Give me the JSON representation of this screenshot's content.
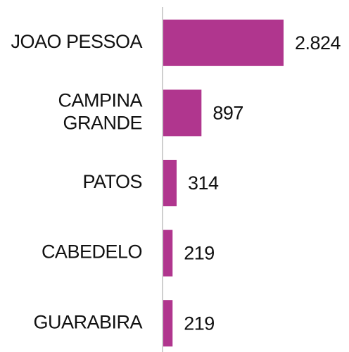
{
  "chart_data": {
    "type": "hbar",
    "categories": [
      "JOAO PESSOA",
      "CAMPINA GRANDE",
      "PATOS",
      "CABEDELO",
      "GUARABIRA"
    ],
    "values": [
      2824,
      897,
      314,
      219,
      219
    ],
    "value_labels": [
      "2.824",
      "897",
      "314",
      "219",
      "219"
    ],
    "color": "#b0368e"
  }
}
